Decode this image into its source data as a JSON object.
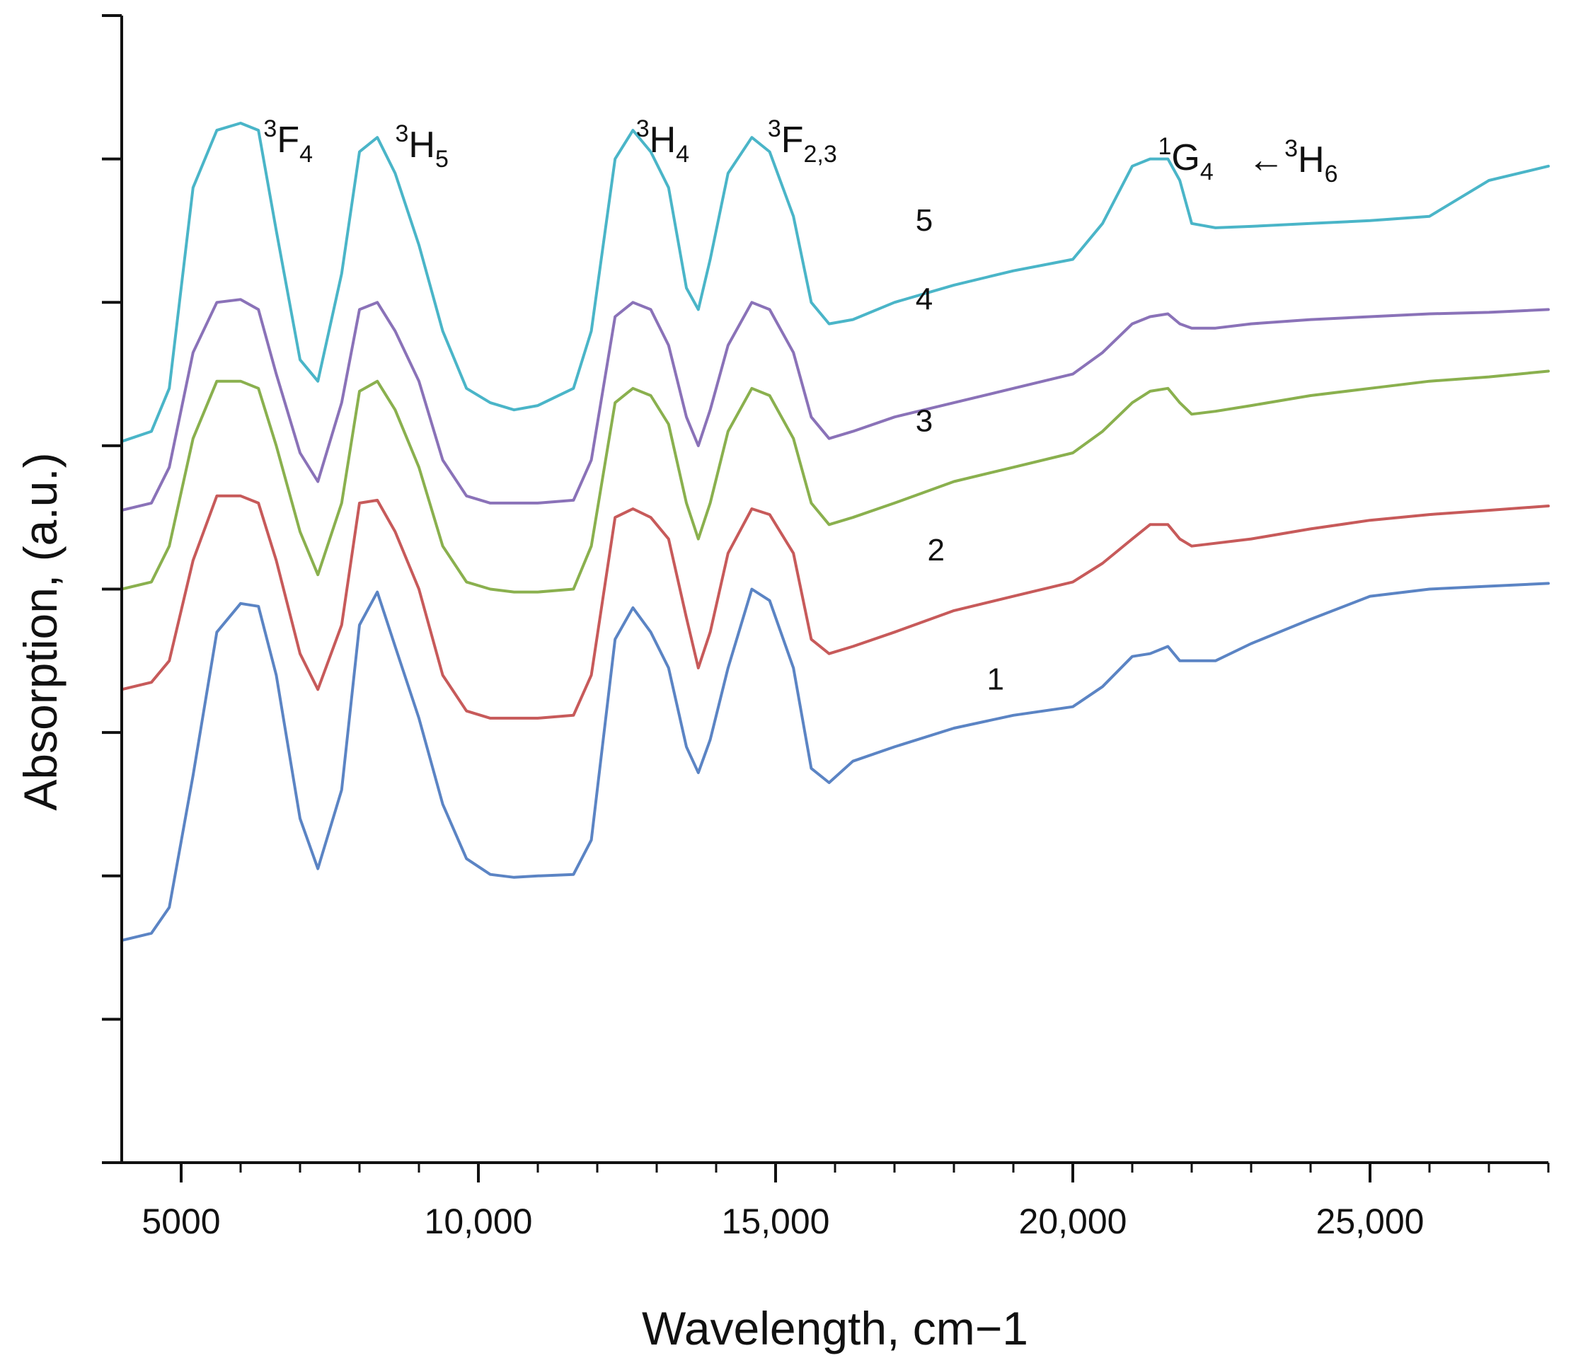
{
  "chart_data": {
    "type": "line",
    "title": "",
    "xlabel": "Wavelength, cm−1",
    "ylabel": "Absorption, (a.u.)",
    "xlim": [
      4000,
      28000
    ],
    "ylim": [
      0,
      8
    ],
    "x_ticks": [
      {
        "value": 5000,
        "label": "5000"
      },
      {
        "value": 10000,
        "label": "10,000"
      },
      {
        "value": 15000,
        "label": "15,000"
      },
      {
        "value": 20000,
        "label": "20,000"
      },
      {
        "value": 25000,
        "label": "25,000"
      }
    ],
    "y_ticks_labeled": false,
    "annotations": {
      "3F4": {
        "letter": "F",
        "sup": "3",
        "sub": "4",
        "x": 6800
      },
      "3H5": {
        "letter": "H",
        "sup": "3",
        "sub": "5",
        "x": 9050
      },
      "3H4": {
        "letter": "H",
        "sup": "3",
        "sub": "4",
        "x": 13100
      },
      "3F23": {
        "letter": "F",
        "sup": "3",
        "sub": "2,3",
        "x": 15450
      },
      "1G4": {
        "letter": "G",
        "sup": "1",
        "sub": "4",
        "x": 21900
      },
      "3H6": {
        "arrow": "←",
        "letter": "H",
        "sup": "3",
        "sub": "6",
        "x": 23700
      }
    },
    "series": [
      {
        "name": "1",
        "color": "#5b84c4",
        "x": [
          4000,
          4500,
          4800,
          5200,
          5600,
          6000,
          6300,
          6600,
          7000,
          7300,
          7700,
          8000,
          8300,
          8600,
          9000,
          9400,
          9800,
          10200,
          10600,
          11000,
          11600,
          11900,
          12300,
          12600,
          12900,
          13200,
          13500,
          13700,
          13900,
          14200,
          14600,
          14900,
          15300,
          15600,
          15900,
          16300,
          17000,
          18000,
          19000,
          20000,
          20500,
          21000,
          21300,
          21600,
          21800,
          22000,
          22400,
          23000,
          24000,
          25000,
          26000,
          27000,
          28000
        ],
        "y": [
          1.55,
          1.6,
          1.78,
          2.7,
          3.7,
          3.9,
          3.88,
          3.4,
          2.4,
          2.05,
          2.6,
          3.75,
          3.98,
          3.6,
          3.1,
          2.5,
          2.12,
          2.01,
          1.99,
          2.0,
          2.01,
          2.25,
          3.65,
          3.87,
          3.7,
          3.45,
          2.9,
          2.72,
          2.95,
          3.45,
          4.0,
          3.92,
          3.45,
          2.75,
          2.65,
          2.8,
          2.9,
          3.03,
          3.12,
          3.18,
          3.32,
          3.53,
          3.55,
          3.6,
          3.5,
          3.5,
          3.5,
          3.62,
          3.79,
          3.95,
          4.0,
          4.02,
          4.04
        ]
      },
      {
        "name": "2",
        "color": "#c75a5a",
        "x": [
          4000,
          4500,
          4800,
          5200,
          5600,
          6000,
          6300,
          6600,
          7000,
          7300,
          7700,
          8000,
          8300,
          8600,
          9000,
          9400,
          9800,
          10200,
          10600,
          11000,
          11600,
          11900,
          12300,
          12600,
          12900,
          13200,
          13500,
          13700,
          13900,
          14200,
          14600,
          14900,
          15300,
          15600,
          15900,
          16300,
          17000,
          18000,
          19000,
          20000,
          20500,
          21000,
          21300,
          21600,
          21800,
          22000,
          22400,
          23000,
          24000,
          25000,
          26000,
          27000,
          28000
        ],
        "y": [
          3.3,
          3.35,
          3.5,
          4.2,
          4.65,
          4.65,
          4.6,
          4.2,
          3.55,
          3.3,
          3.75,
          4.6,
          4.62,
          4.4,
          4.0,
          3.4,
          3.15,
          3.1,
          3.1,
          3.1,
          3.12,
          3.4,
          4.5,
          4.56,
          4.5,
          4.35,
          3.8,
          3.45,
          3.7,
          4.25,
          4.56,
          4.52,
          4.25,
          3.65,
          3.55,
          3.6,
          3.7,
          3.85,
          3.95,
          4.05,
          4.18,
          4.35,
          4.45,
          4.45,
          4.35,
          4.3,
          4.32,
          4.35,
          4.42,
          4.48,
          4.52,
          4.55,
          4.58
        ]
      },
      {
        "name": "3",
        "color": "#8ab04e",
        "x": [
          4000,
          4500,
          4800,
          5200,
          5600,
          6000,
          6300,
          6600,
          7000,
          7300,
          7700,
          8000,
          8300,
          8600,
          9000,
          9400,
          9800,
          10200,
          10600,
          11000,
          11600,
          11900,
          12300,
          12600,
          12900,
          13200,
          13500,
          13700,
          13900,
          14200,
          14600,
          14900,
          15300,
          15600,
          15900,
          16300,
          17000,
          18000,
          19000,
          20000,
          20500,
          21000,
          21300,
          21600,
          21800,
          22000,
          22400,
          23000,
          24000,
          25000,
          26000,
          27000,
          28000
        ],
        "y": [
          4.0,
          4.05,
          4.3,
          5.05,
          5.45,
          5.45,
          5.4,
          5.0,
          4.4,
          4.1,
          4.6,
          5.38,
          5.45,
          5.25,
          4.85,
          4.3,
          4.05,
          4.0,
          3.98,
          3.98,
          4.0,
          4.3,
          5.3,
          5.4,
          5.35,
          5.15,
          4.6,
          4.35,
          4.6,
          5.1,
          5.4,
          5.35,
          5.05,
          4.6,
          4.45,
          4.5,
          4.6,
          4.75,
          4.85,
          4.95,
          5.1,
          5.3,
          5.38,
          5.4,
          5.3,
          5.22,
          5.24,
          5.28,
          5.35,
          5.4,
          5.45,
          5.48,
          5.52
        ]
      },
      {
        "name": "4",
        "color": "#8a72b8",
        "x": [
          4000,
          4500,
          4800,
          5200,
          5600,
          6000,
          6300,
          6600,
          7000,
          7300,
          7700,
          8000,
          8300,
          8600,
          9000,
          9400,
          9800,
          10200,
          10600,
          11000,
          11600,
          11900,
          12300,
          12600,
          12900,
          13200,
          13500,
          13700,
          13900,
          14200,
          14600,
          14900,
          15300,
          15600,
          15900,
          16300,
          17000,
          18000,
          19000,
          20000,
          20500,
          21000,
          21300,
          21600,
          21800,
          22000,
          22400,
          23000,
          24000,
          25000,
          26000,
          27000,
          28000
        ],
        "y": [
          4.55,
          4.6,
          4.85,
          5.65,
          6.0,
          6.02,
          5.95,
          5.5,
          4.95,
          4.75,
          5.3,
          5.95,
          6.0,
          5.8,
          5.45,
          4.9,
          4.65,
          4.6,
          4.6,
          4.6,
          4.62,
          4.9,
          5.9,
          6.0,
          5.95,
          5.7,
          5.2,
          5.0,
          5.25,
          5.7,
          6.0,
          5.95,
          5.65,
          5.2,
          5.05,
          5.1,
          5.2,
          5.3,
          5.4,
          5.5,
          5.65,
          5.85,
          5.9,
          5.92,
          5.85,
          5.82,
          5.82,
          5.85,
          5.88,
          5.9,
          5.92,
          5.93,
          5.95
        ]
      },
      {
        "name": "5",
        "color": "#4ab5c8",
        "x": [
          4000,
          4500,
          4800,
          5200,
          5600,
          6000,
          6300,
          6600,
          7000,
          7300,
          7700,
          8000,
          8300,
          8600,
          9000,
          9400,
          9800,
          10200,
          10600,
          11000,
          11600,
          11900,
          12300,
          12600,
          12900,
          13200,
          13500,
          13700,
          13900,
          14200,
          14600,
          14900,
          15300,
          15600,
          15900,
          16300,
          17000,
          18000,
          19000,
          20000,
          20500,
          21000,
          21300,
          21600,
          21800,
          22000,
          22400,
          23000,
          24000,
          25000,
          26000,
          27000,
          28000
        ],
        "y": [
          5.03,
          5.1,
          5.4,
          6.8,
          7.2,
          7.25,
          7.2,
          6.5,
          5.6,
          5.45,
          6.2,
          7.05,
          7.15,
          6.9,
          6.4,
          5.8,
          5.4,
          5.3,
          5.25,
          5.28,
          5.4,
          5.8,
          7.0,
          7.2,
          7.05,
          6.8,
          6.1,
          5.95,
          6.3,
          6.9,
          7.15,
          7.05,
          6.6,
          6.0,
          5.85,
          5.88,
          6.0,
          6.12,
          6.22,
          6.3,
          6.55,
          6.95,
          7.0,
          7.0,
          6.85,
          6.55,
          6.52,
          6.53,
          6.55,
          6.57,
          6.6,
          6.85,
          6.95
        ]
      }
    ],
    "curve_labels": [
      {
        "name": "1",
        "x": 18700,
        "y": 3.3
      },
      {
        "name": "2",
        "x": 17700,
        "y": 4.2
      },
      {
        "name": "3",
        "x": 17500,
        "y": 5.1
      },
      {
        "name": "4",
        "x": 17500,
        "y": 5.95
      },
      {
        "name": "5",
        "x": 17500,
        "y": 6.5
      }
    ]
  }
}
